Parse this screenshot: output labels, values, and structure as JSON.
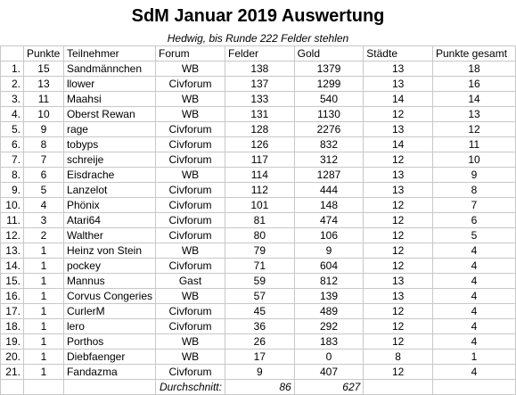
{
  "title": "SdM Januar 2019 Auswertung",
  "subtitle": "Hedwig, bis Runde 222 Felder stehlen",
  "columns": [
    "",
    "Punkte",
    "Teilnehmer",
    "Forum",
    "Felder",
    "Gold",
    "Städte",
    "Punkte gesamt"
  ],
  "rows": [
    [
      "1.",
      "15",
      "Sandmännchen",
      "WB",
      "138",
      "1379",
      "13",
      "18"
    ],
    [
      "2.",
      "13",
      "llower",
      "Civforum",
      "137",
      "1299",
      "13",
      "16"
    ],
    [
      "3.",
      "11",
      "Maahsi",
      "WB",
      "133",
      "540",
      "14",
      "14"
    ],
    [
      "4.",
      "10",
      "Oberst Rewan",
      "WB",
      "131",
      "1130",
      "12",
      "13"
    ],
    [
      "5.",
      "9",
      "rage",
      "Civforum",
      "128",
      "2276",
      "13",
      "12"
    ],
    [
      "6.",
      "8",
      "tobyps",
      "Civforum",
      "126",
      "832",
      "14",
      "11"
    ],
    [
      "7.",
      "7",
      "schreije",
      "Civforum",
      "117",
      "312",
      "12",
      "10"
    ],
    [
      "8.",
      "6",
      "Eisdrache",
      "WB",
      "114",
      "1287",
      "13",
      "9"
    ],
    [
      "9.",
      "5",
      "Lanzelot",
      "Civforum",
      "112",
      "444",
      "13",
      "8"
    ],
    [
      "10.",
      "4",
      "Phönix",
      "Civforum",
      "101",
      "148",
      "12",
      "7"
    ],
    [
      "11.",
      "3",
      "Atari64",
      "Civforum",
      "81",
      "474",
      "12",
      "6"
    ],
    [
      "12.",
      "2",
      "Walther",
      "Civforum",
      "80",
      "106",
      "12",
      "5"
    ],
    [
      "13.",
      "1",
      "Heinz von Stein",
      "WB",
      "79",
      "9",
      "12",
      "4"
    ],
    [
      "14.",
      "1",
      "pockey",
      "Civforum",
      "71",
      "604",
      "12",
      "4"
    ],
    [
      "15.",
      "1",
      "Mannus",
      "Gast",
      "59",
      "812",
      "13",
      "4"
    ],
    [
      "16.",
      "1",
      "Corvus Congeries",
      "WB",
      "57",
      "139",
      "13",
      "4"
    ],
    [
      "17.",
      "1",
      "CurlerM",
      "Civforum",
      "45",
      "489",
      "12",
      "4"
    ],
    [
      "18.",
      "1",
      "lero",
      "Civforum",
      "36",
      "292",
      "12",
      "4"
    ],
    [
      "19.",
      "1",
      "Porthos",
      "WB",
      "26",
      "183",
      "12",
      "4"
    ],
    [
      "20.",
      "1",
      "Diebfaenger",
      "WB",
      "17",
      "0",
      "8",
      "1"
    ],
    [
      "21.",
      "1",
      "Fandazma",
      "Civforum",
      "9",
      "407",
      "12",
      "4"
    ]
  ],
  "footer": {
    "label": "Durchschnitt:",
    "felder_avg": "86",
    "gold_avg": "627"
  }
}
